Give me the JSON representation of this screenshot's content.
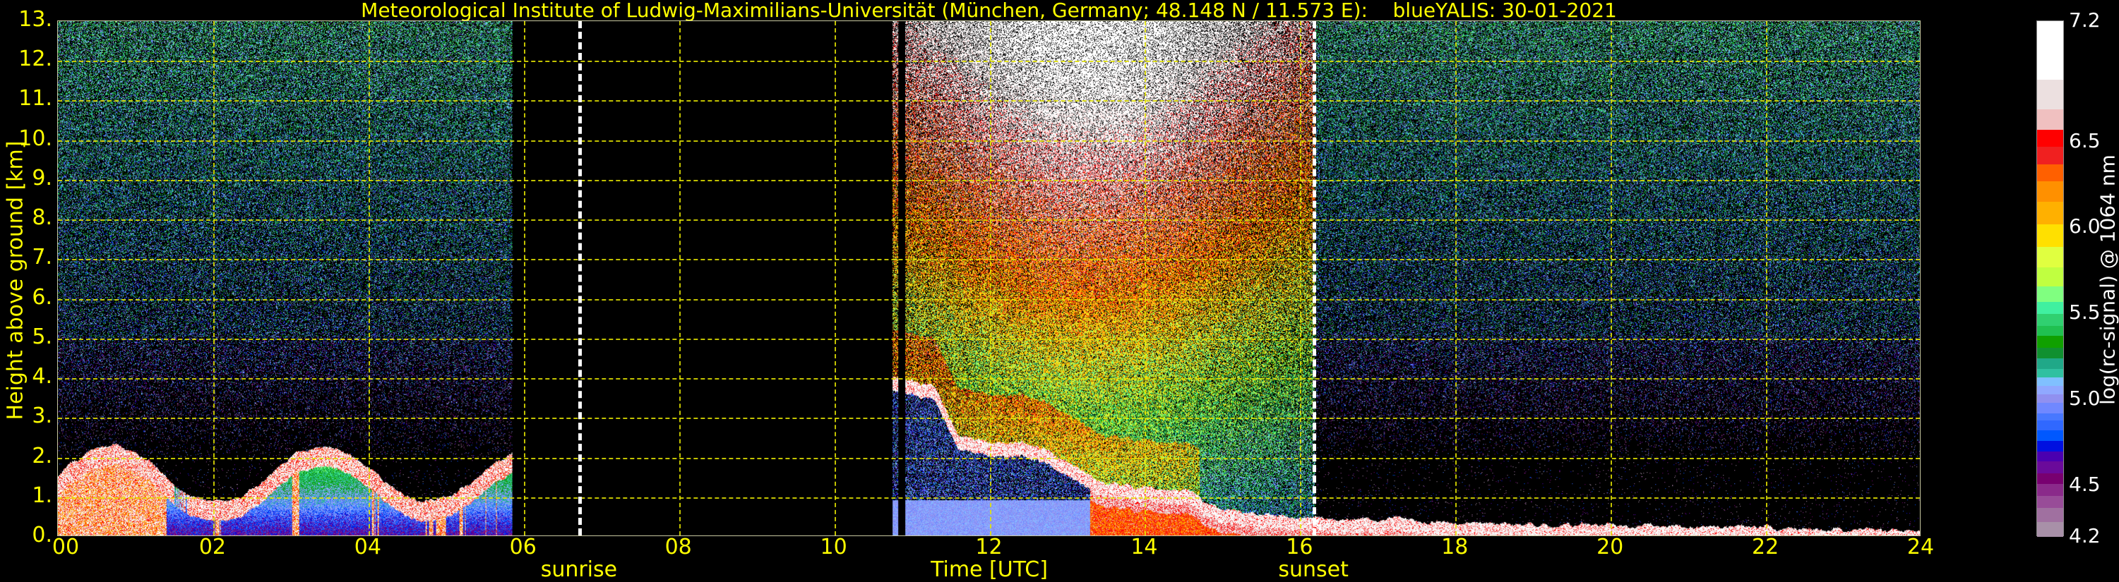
{
  "chart_data": {
    "type": "heatmap",
    "title": "Meteorological Institute of Ludwig-Maximilians-Universität (München, Germany; 48.148 N / 11.573 E):    blueYALIS: 30-01-2021",
    "xlabel": "Time [UTC]",
    "ylabel": "Height above ground [km]",
    "xlim": [
      0,
      24
    ],
    "ylim": [
      0,
      13
    ],
    "grid": true,
    "xticks": [
      {
        "value": 0,
        "label": "00"
      },
      {
        "value": 2,
        "label": "02"
      },
      {
        "value": 4,
        "label": "04"
      },
      {
        "value": 6,
        "label": "06"
      },
      {
        "value": 8,
        "label": "08"
      },
      {
        "value": 10,
        "label": "10"
      },
      {
        "value": 12,
        "label": "12"
      },
      {
        "value": 14,
        "label": "14"
      },
      {
        "value": 16,
        "label": "16"
      },
      {
        "value": 18,
        "label": "18"
      },
      {
        "value": 20,
        "label": "20"
      },
      {
        "value": 22,
        "label": "22"
      },
      {
        "value": 24,
        "label": "24"
      }
    ],
    "yticks": [
      {
        "value": 0,
        "label": "0."
      },
      {
        "value": 1,
        "label": "1."
      },
      {
        "value": 2,
        "label": "2."
      },
      {
        "value": 3,
        "label": "3."
      },
      {
        "value": 4,
        "label": "4."
      },
      {
        "value": 5,
        "label": "5."
      },
      {
        "value": 6,
        "label": "6."
      },
      {
        "value": 7,
        "label": "7."
      },
      {
        "value": 8,
        "label": "8."
      },
      {
        "value": 9,
        "label": "9."
      },
      {
        "value": 10,
        "label": "10."
      },
      {
        "value": 11,
        "label": "11."
      },
      {
        "value": 12,
        "label": "12."
      },
      {
        "value": 13,
        "label": "13."
      }
    ],
    "annotations": [
      {
        "label": "sunrise",
        "x": 6.72,
        "style": "white-dashed-vertical"
      },
      {
        "label": "sunset",
        "x": 16.18,
        "style": "white-dashed-vertical"
      }
    ],
    "no_data_intervals": [
      [
        5.85,
        10.75
      ],
      [
        10.83,
        10.92
      ]
    ],
    "colorbar": {
      "label": "log(rc-signal) @ 1064 nm",
      "range": [
        4.2,
        7.2
      ],
      "ticks": [
        {
          "value": 4.2,
          "label": "4.2"
        },
        {
          "value": 4.5,
          "label": "4.5"
        },
        {
          "value": 5.0,
          "label": "5.0"
        },
        {
          "value": 5.5,
          "label": "5.5"
        },
        {
          "value": 6.0,
          "label": "6.0"
        },
        {
          "value": 6.5,
          "label": "6.5"
        },
        {
          "value": 7.2,
          "label": "7.2"
        }
      ],
      "levels": [
        [
          4.2,
          "#a890a8"
        ],
        [
          4.29,
          "#a070a0"
        ],
        [
          4.37,
          "#984c98"
        ],
        [
          4.44,
          "#8a2a8a"
        ],
        [
          4.51,
          "#780070"
        ],
        [
          4.57,
          "#6a0a9a"
        ],
        [
          4.64,
          "#4a00b0"
        ],
        [
          4.7,
          "#0010e0"
        ],
        [
          4.76,
          "#0058ff"
        ],
        [
          4.82,
          "#3068ff"
        ],
        [
          4.88,
          "#4878ff"
        ],
        [
          4.92,
          "#7088ff"
        ],
        [
          4.98,
          "#9090f0"
        ],
        [
          5.03,
          "#90a8ff"
        ],
        [
          5.08,
          "#80c0ff"
        ],
        [
          5.13,
          "#30c0a0"
        ],
        [
          5.18,
          "#20a888"
        ],
        [
          5.24,
          "#109030"
        ],
        [
          5.3,
          "#10a000"
        ],
        [
          5.37,
          "#20c050"
        ],
        [
          5.43,
          "#30d070"
        ],
        [
          5.5,
          "#40f0a0"
        ],
        [
          5.57,
          "#80ff80"
        ],
        [
          5.66,
          "#c0ff40"
        ],
        [
          5.77,
          "#e0ff40"
        ],
        [
          5.89,
          "#ffe000"
        ],
        [
          6.02,
          "#ffb000"
        ],
        [
          6.15,
          "#ff9000"
        ],
        [
          6.27,
          "#ff6000"
        ],
        [
          6.37,
          "#f02020"
        ],
        [
          6.47,
          "#ff0000"
        ],
        [
          6.57,
          "#f0c0c0"
        ],
        [
          6.69,
          "#ece0e0"
        ],
        [
          6.86,
          "#ffffff"
        ]
      ]
    },
    "colors": {
      "text": "#ffff00",
      "grid": "#e6e600",
      "background": "#000000"
    }
  }
}
